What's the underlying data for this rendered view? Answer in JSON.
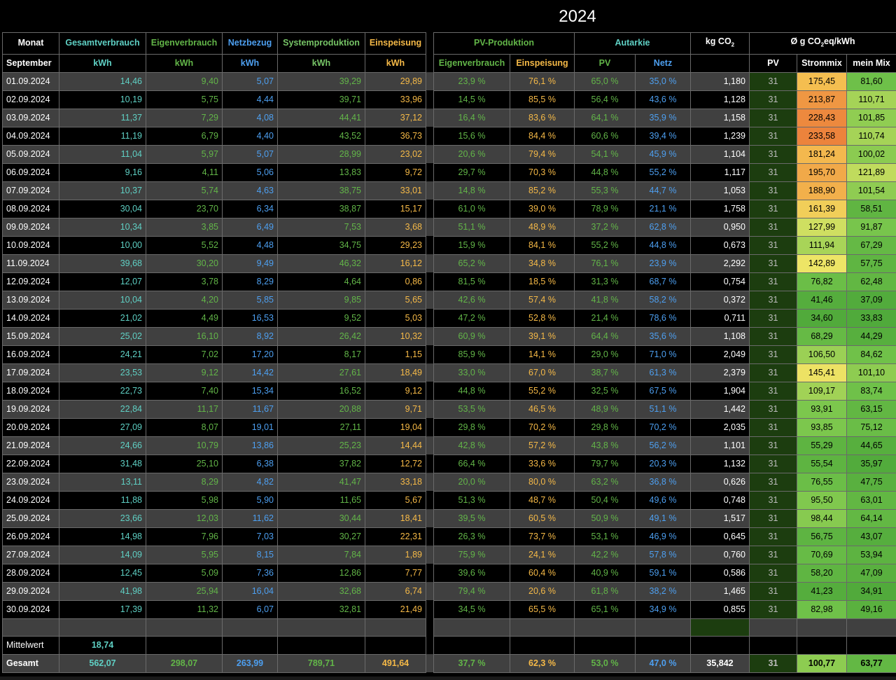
{
  "title": "2024",
  "header": {
    "monat": "Monat",
    "gesamtverbrauch": "Gesamtverbrauch",
    "eigenverbrauch": "Eigenverbrauch",
    "netzbezug": "Netzbezug",
    "systemproduktion": "Systemproduktion",
    "einspeisung": "Einspeisung",
    "pv_produktion": "PV-Produktion",
    "autarkie": "Autarkie",
    "co2": "kg CO",
    "co2_sub": "2",
    "mix_prefix": "Ø g CO",
    "mix_sub": "2",
    "mix_suffix": "eq/kWh"
  },
  "subheader": {
    "month": "September",
    "u1": "kWh",
    "u2": "kWh",
    "u3": "kWh",
    "u4": "kWh",
    "u5": "kWh",
    "pv_eigen": "Eigenverbrauch",
    "pv_einsp": "Einspeisung",
    "aut_pv": "PV",
    "aut_netz": "Netz",
    "mix_pv": "PV",
    "mix_strom": "Strommix",
    "mix_mein": "mein Mix"
  },
  "colors": {
    "cyan": "#5fd0c4",
    "green": "#62b548",
    "blue": "#4d9ff0",
    "orange": "#f5b947",
    "pv_cell": "#1c3d0f"
  },
  "rows": [
    [
      "01.09.2024",
      "14,46",
      "9,40",
      "5,07",
      "39,29",
      "29,89",
      "23,9 %",
      "76,1 %",
      "65,0 %",
      "35,0 %",
      "1,180",
      "31",
      "175,45",
      "81,60"
    ],
    [
      "02.09.2024",
      "10,19",
      "5,75",
      "4,44",
      "39,71",
      "33,96",
      "14,5 %",
      "85,5 %",
      "56,4 %",
      "43,6 %",
      "1,128",
      "31",
      "213,87",
      "110,71"
    ],
    [
      "03.09.2024",
      "11,37",
      "7,29",
      "4,08",
      "44,41",
      "37,12",
      "16,4 %",
      "83,6 %",
      "64,1 %",
      "35,9 %",
      "1,158",
      "31",
      "228,43",
      "101,85"
    ],
    [
      "04.09.2024",
      "11,19",
      "6,79",
      "4,40",
      "43,52",
      "36,73",
      "15,6 %",
      "84,4 %",
      "60,6 %",
      "39,4 %",
      "1,239",
      "31",
      "233,58",
      "110,74"
    ],
    [
      "05.09.2024",
      "11,04",
      "5,97",
      "5,07",
      "28,99",
      "23,02",
      "20,6 %",
      "79,4 %",
      "54,1 %",
      "45,9 %",
      "1,104",
      "31",
      "181,24",
      "100,02"
    ],
    [
      "06.09.2024",
      "9,16",
      "4,11",
      "5,06",
      "13,83",
      "9,72",
      "29,7 %",
      "70,3 %",
      "44,8 %",
      "55,2 %",
      "1,117",
      "31",
      "195,70",
      "121,89"
    ],
    [
      "07.09.2024",
      "10,37",
      "5,74",
      "4,63",
      "38,75",
      "33,01",
      "14,8 %",
      "85,2 %",
      "55,3 %",
      "44,7 %",
      "1,053",
      "31",
      "188,90",
      "101,54"
    ],
    [
      "08.09.2024",
      "30,04",
      "23,70",
      "6,34",
      "38,87",
      "15,17",
      "61,0 %",
      "39,0 %",
      "78,9 %",
      "21,1 %",
      "1,758",
      "31",
      "161,39",
      "58,51"
    ],
    [
      "09.09.2024",
      "10,34",
      "3,85",
      "6,49",
      "7,53",
      "3,68",
      "51,1 %",
      "48,9 %",
      "37,2 %",
      "62,8 %",
      "0,950",
      "31",
      "127,99",
      "91,87"
    ],
    [
      "10.09.2024",
      "10,00",
      "5,52",
      "4,48",
      "34,75",
      "29,23",
      "15,9 %",
      "84,1 %",
      "55,2 %",
      "44,8 %",
      "0,673",
      "31",
      "111,94",
      "67,29"
    ],
    [
      "11.09.2024",
      "39,68",
      "30,20",
      "9,49",
      "46,32",
      "16,12",
      "65,2 %",
      "34,8 %",
      "76,1 %",
      "23,9 %",
      "2,292",
      "31",
      "142,89",
      "57,75"
    ],
    [
      "12.09.2024",
      "12,07",
      "3,78",
      "8,29",
      "4,64",
      "0,86",
      "81,5 %",
      "18,5 %",
      "31,3 %",
      "68,7 %",
      "0,754",
      "31",
      "76,82",
      "62,48"
    ],
    [
      "13.09.2024",
      "10,04",
      "4,20",
      "5,85",
      "9,85",
      "5,65",
      "42,6 %",
      "57,4 %",
      "41,8 %",
      "58,2 %",
      "0,372",
      "31",
      "41,46",
      "37,09"
    ],
    [
      "14.09.2024",
      "21,02",
      "4,49",
      "16,53",
      "9,52",
      "5,03",
      "47,2 %",
      "52,8 %",
      "21,4 %",
      "78,6 %",
      "0,711",
      "31",
      "34,60",
      "33,83"
    ],
    [
      "15.09.2024",
      "25,02",
      "16,10",
      "8,92",
      "26,42",
      "10,32",
      "60,9 %",
      "39,1 %",
      "64,4 %",
      "35,6 %",
      "1,108",
      "31",
      "68,29",
      "44,29"
    ],
    [
      "16.09.2024",
      "24,21",
      "7,02",
      "17,20",
      "8,17",
      "1,15",
      "85,9 %",
      "14,1 %",
      "29,0 %",
      "71,0 %",
      "2,049",
      "31",
      "106,50",
      "84,62"
    ],
    [
      "17.09.2024",
      "23,53",
      "9,12",
      "14,42",
      "27,61",
      "18,49",
      "33,0 %",
      "67,0 %",
      "38,7 %",
      "61,3 %",
      "2,379",
      "31",
      "145,41",
      "101,10"
    ],
    [
      "18.09.2024",
      "22,73",
      "7,40",
      "15,34",
      "16,52",
      "9,12",
      "44,8 %",
      "55,2 %",
      "32,5 %",
      "67,5 %",
      "1,904",
      "31",
      "109,17",
      "83,74"
    ],
    [
      "19.09.2024",
      "22,84",
      "11,17",
      "11,67",
      "20,88",
      "9,71",
      "53,5 %",
      "46,5 %",
      "48,9 %",
      "51,1 %",
      "1,442",
      "31",
      "93,91",
      "63,15"
    ],
    [
      "20.09.2024",
      "27,09",
      "8,07",
      "19,01",
      "27,11",
      "19,04",
      "29,8 %",
      "70,2 %",
      "29,8 %",
      "70,2 %",
      "2,035",
      "31",
      "93,85",
      "75,12"
    ],
    [
      "21.09.2024",
      "24,66",
      "10,79",
      "13,86",
      "25,23",
      "14,44",
      "42,8 %",
      "57,2 %",
      "43,8 %",
      "56,2 %",
      "1,101",
      "31",
      "55,29",
      "44,65"
    ],
    [
      "22.09.2024",
      "31,48",
      "25,10",
      "6,38",
      "37,82",
      "12,72",
      "66,4 %",
      "33,6 %",
      "79,7 %",
      "20,3 %",
      "1,132",
      "31",
      "55,54",
      "35,97"
    ],
    [
      "23.09.2024",
      "13,11",
      "8,29",
      "4,82",
      "41,47",
      "33,18",
      "20,0 %",
      "80,0 %",
      "63,2 %",
      "36,8 %",
      "0,626",
      "31",
      "76,55",
      "47,75"
    ],
    [
      "24.09.2024",
      "11,88",
      "5,98",
      "5,90",
      "11,65",
      "5,67",
      "51,3 %",
      "48,7 %",
      "50,4 %",
      "49,6 %",
      "0,748",
      "31",
      "95,50",
      "63,01"
    ],
    [
      "25.09.2024",
      "23,66",
      "12,03",
      "11,62",
      "30,44",
      "18,41",
      "39,5 %",
      "60,5 %",
      "50,9 %",
      "49,1 %",
      "1,517",
      "31",
      "98,44",
      "64,14"
    ],
    [
      "26.09.2024",
      "14,98",
      "7,96",
      "7,03",
      "30,27",
      "22,31",
      "26,3 %",
      "73,7 %",
      "53,1 %",
      "46,9 %",
      "0,645",
      "31",
      "56,75",
      "43,07"
    ],
    [
      "27.09.2024",
      "14,09",
      "5,95",
      "8,15",
      "7,84",
      "1,89",
      "75,9 %",
      "24,1 %",
      "42,2 %",
      "57,8 %",
      "0,760",
      "31",
      "70,69",
      "53,94"
    ],
    [
      "28.09.2024",
      "12,45",
      "5,09",
      "7,36",
      "12,86",
      "7,77",
      "39,6 %",
      "60,4 %",
      "40,9 %",
      "59,1 %",
      "0,586",
      "31",
      "58,20",
      "47,09"
    ],
    [
      "29.09.2024",
      "41,98",
      "25,94",
      "16,04",
      "32,68",
      "6,74",
      "79,4 %",
      "20,6 %",
      "61,8 %",
      "38,2 %",
      "1,465",
      "31",
      "41,23",
      "34,91"
    ],
    [
      "30.09.2024",
      "17,39",
      "11,32",
      "6,07",
      "32,81",
      "21,49",
      "34,5 %",
      "65,5 %",
      "65,1 %",
      "34,9 %",
      "0,855",
      "31",
      "82,98",
      "49,16"
    ]
  ],
  "mittelwert": {
    "label": "Mittelwert",
    "value": "18,74"
  },
  "gesamt": {
    "label": "Gesamt",
    "values": [
      "562,07",
      "298,07",
      "263,99",
      "789,71",
      "491,64",
      "37,7 %",
      "62,3 %",
      "53,0 %",
      "47,0 %",
      "35,842",
      "31",
      "100,77",
      "63,77"
    ]
  }
}
